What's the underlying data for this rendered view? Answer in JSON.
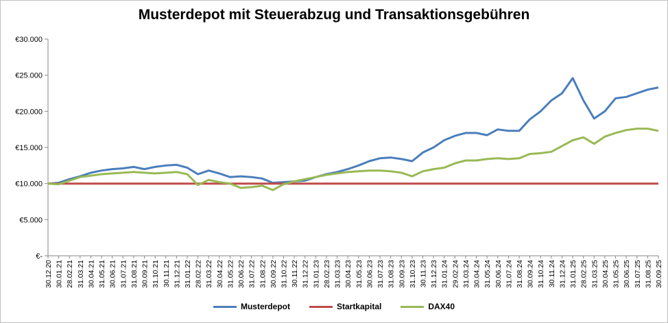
{
  "chart_data": {
    "type": "line",
    "title": "Musterdepot mit Steuerabzug und Transaktionsgebühren",
    "xlabel": "",
    "ylabel": "",
    "ylim": [
      0,
      30000
    ],
    "y_ticks": [
      {
        "value": 0,
        "label": "€-"
      },
      {
        "value": 5000,
        "label": "€5.000"
      },
      {
        "value": 10000,
        "label": "€10.000"
      },
      {
        "value": 15000,
        "label": "€15.000"
      },
      {
        "value": 20000,
        "label": "€20.000"
      },
      {
        "value": 25000,
        "label": "€25.000"
      },
      {
        "value": 30000,
        "label": "€30.000"
      }
    ],
    "x": [
      "30.12.20",
      "30.01.21",
      "28.02.21",
      "31.03.21",
      "30.04.21",
      "31.05.21",
      "30.06.21",
      "31.07.21",
      "31.08.21",
      "30.09.21",
      "31.10.21",
      "30.11.21",
      "31.12.21",
      "31.01.22",
      "28.02.22",
      "31.03.22",
      "30.04.22",
      "31.05.22",
      "30.06.22",
      "31.07.22",
      "31.08.22",
      "30.09.22",
      "31.10.22",
      "30.11.22",
      "31.12.22",
      "31.01.23",
      "28.02.23",
      "31.03.23",
      "30.04.23",
      "31.05.23",
      "30.06.23",
      "31.07.23",
      "31.08.23",
      "30.09.23",
      "31.10.23",
      "30.11.23",
      "31.12.23",
      "31.01.24",
      "29.02.24",
      "31.03.24",
      "30.04.24",
      "31.05.24",
      "30.06.24",
      "31.07.24",
      "31.08.24",
      "30.09.24",
      "31.10.24",
      "30.11.24",
      "31.12.24",
      "31.01.25",
      "28.02.25",
      "31.03.25",
      "30.04.25",
      "31.05.25",
      "30.06.25",
      "31.07.25",
      "31.08.25",
      "30.09.25"
    ],
    "grid": false,
    "legend_position": "bottom",
    "series": [
      {
        "name": "Musterdepot",
        "color": "#4a7ebb",
        "values": [
          10000,
          10100,
          10600,
          11000,
          11500,
          11800,
          12000,
          12100,
          12300,
          12000,
          12300,
          12500,
          12600,
          12200,
          11300,
          11800,
          11400,
          10900,
          11000,
          10900,
          10700,
          10100,
          10200,
          10300,
          10400,
          10900,
          11300,
          11600,
          12000,
          12500,
          13100,
          13500,
          13600,
          13400,
          13100,
          14300,
          15000,
          16000,
          16600,
          17000,
          17000,
          16700,
          17500,
          17300,
          17300,
          18900,
          20000,
          21500,
          22500,
          24600,
          21500,
          19000,
          20000,
          21800,
          22000,
          22500,
          23000,
          23300
        ]
      },
      {
        "name": "Startkapital",
        "color": "#be4b48",
        "values": [
          10000,
          10000,
          10000,
          10000,
          10000,
          10000,
          10000,
          10000,
          10000,
          10000,
          10000,
          10000,
          10000,
          10000,
          10000,
          10000,
          10000,
          10000,
          10000,
          10000,
          10000,
          10000,
          10000,
          10000,
          10000,
          10000,
          10000,
          10000,
          10000,
          10000,
          10000,
          10000,
          10000,
          10000,
          10000,
          10000,
          10000,
          10000,
          10000,
          10000,
          10000,
          10000,
          10000,
          10000,
          10000,
          10000,
          10000,
          10000,
          10000,
          10000,
          10000,
          10000,
          10000,
          10000,
          10000,
          10000,
          10000,
          10000
        ]
      },
      {
        "name": "DAX40",
        "color": "#98b954",
        "values": [
          10000,
          9900,
          10400,
          10900,
          11100,
          11300,
          11400,
          11500,
          11600,
          11500,
          11400,
          11500,
          11600,
          11300,
          9800,
          10500,
          10200,
          10000,
          9400,
          9500,
          9700,
          9100,
          9900,
          10300,
          10600,
          10900,
          11200,
          11400,
          11600,
          11700,
          11800,
          11800,
          11700,
          11500,
          11000,
          11700,
          12000,
          12200,
          12800,
          13200,
          13200,
          13400,
          13500,
          13400,
          13500,
          14100,
          14200,
          14400,
          15200,
          16000,
          16400,
          15500,
          16500,
          17000,
          17400,
          17600,
          17600,
          17300
        ]
      }
    ]
  }
}
